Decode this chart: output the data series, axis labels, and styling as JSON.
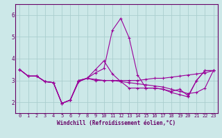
{
  "xlabel": "Windchill (Refroidissement éolien,°C)",
  "xlim": [
    -0.5,
    23.5
  ],
  "ylim": [
    1.5,
    6.5
  ],
  "yticks": [
    2,
    3,
    4,
    5,
    6
  ],
  "xticks": [
    0,
    1,
    2,
    3,
    4,
    5,
    6,
    7,
    8,
    9,
    10,
    11,
    12,
    13,
    14,
    15,
    16,
    17,
    18,
    19,
    20,
    21,
    22,
    23
  ],
  "background_color": "#cce8e8",
  "grid_color": "#aacece",
  "line_color": "#990099",
  "lines": [
    [
      3.5,
      3.2,
      3.2,
      2.95,
      2.9,
      1.95,
      2.1,
      2.95,
      3.1,
      3.35,
      3.55,
      5.3,
      5.85,
      4.95,
      3.25,
      2.65,
      2.65,
      2.6,
      2.45,
      2.35,
      2.25,
      3.0,
      3.45,
      3.45
    ],
    [
      3.5,
      3.2,
      3.2,
      2.95,
      2.9,
      1.95,
      2.1,
      2.95,
      3.1,
      3.0,
      3.0,
      3.0,
      3.0,
      3.0,
      3.0,
      3.05,
      3.1,
      3.1,
      3.15,
      3.2,
      3.25,
      3.3,
      3.35,
      3.45
    ],
    [
      3.5,
      3.2,
      3.2,
      2.95,
      2.9,
      1.95,
      2.1,
      3.0,
      3.1,
      3.05,
      3.0,
      3.0,
      2.95,
      2.9,
      2.85,
      2.8,
      2.75,
      2.7,
      2.6,
      2.5,
      2.4,
      2.45,
      2.65,
      3.45
    ],
    [
      3.5,
      3.2,
      3.2,
      2.95,
      2.9,
      1.95,
      2.1,
      3.0,
      3.1,
      3.5,
      3.9,
      3.3,
      2.95,
      2.65,
      2.65,
      2.65,
      2.65,
      2.6,
      2.5,
      2.6,
      2.3,
      3.0,
      3.45,
      3.45
    ]
  ]
}
